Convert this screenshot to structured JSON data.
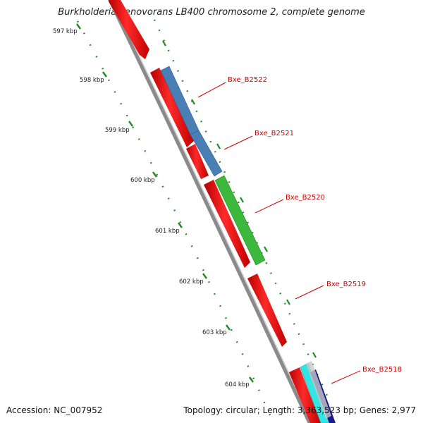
{
  "title": "Burkholderia xenovorans LB400 chromosome 2, complete genome",
  "footer": {
    "accession": "Accession: NC_007952",
    "summary": "Topology: circular; Length: 3,363,523 bp; Genes: 2,977"
  },
  "scale": {
    "unit": "kbp",
    "ticks": [
      "597 kbp",
      "598 kbp",
      "599 kbp",
      "600 kbp",
      "601 kbp",
      "602 kbp",
      "603 kbp",
      "604 kbp"
    ]
  },
  "genes": [
    {
      "label": "Bxe_B2522",
      "track": "outer",
      "color": "#4a7fb5"
    },
    {
      "label": "Bxe_B2521",
      "track": "outer",
      "color": "#4a7fb5"
    },
    {
      "label": "Bxe_B2520",
      "track": "outer",
      "color": "#3cb83c"
    },
    {
      "label": "Bxe_B2519",
      "track": "inner",
      "color": "#ee1111"
    },
    {
      "label": "Bxe_B2518",
      "track": "outer",
      "color": "#33e6e6"
    }
  ],
  "colors": {
    "cds": "#ee1111",
    "label": "#cc0000",
    "backbone": "#888888",
    "ruler": "#1f8a1f"
  }
}
